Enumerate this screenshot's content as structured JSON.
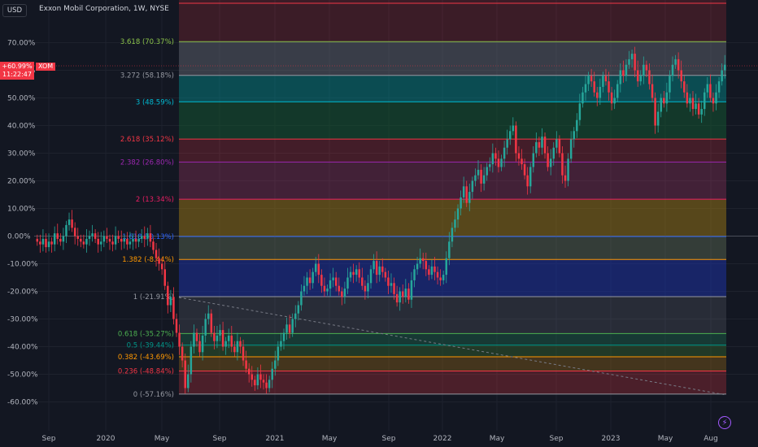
{
  "header": {
    "currency": "USD",
    "title": "Exxon Mobil Corporation, 1W, NYSE"
  },
  "badges": {
    "price_change": "+60.99%",
    "countdown": "11:22:47",
    "ticker": "XOM"
  },
  "colors": {
    "background": "#131722",
    "up": "#26a69a",
    "down": "#f23645",
    "grid": "#1e222d"
  },
  "icons": {
    "alert": "lightning-icon"
  },
  "chart_data": {
    "type": "candlestick",
    "title": "Exxon Mobil Corporation, 1W, NYSE",
    "y_axis": {
      "unit": "%",
      "range": [
        -63,
        84
      ],
      "ticks": [
        "70.00%",
        "60.00%",
        "50.00%",
        "40.00%",
        "30.00%",
        "20.00%",
        "10.00%",
        "0.00%",
        "-10.00%",
        "-20.00%",
        "-30.00%",
        "-40.00%",
        "-50.00%",
        "-60.00%"
      ]
    },
    "x_axis": {
      "ticks": [
        "Sep",
        "2020",
        "May",
        "Sep",
        "2021",
        "May",
        "Sep",
        "2022",
        "May",
        "Sep",
        "2023",
        "May",
        "Aug"
      ]
    },
    "fib_levels": [
      {
        "label": "3.618 (70.37%)",
        "value": 70.37,
        "color": "#8bc34a"
      },
      {
        "label": "3.272 (58.18%)",
        "value": 58.18,
        "color": "#9598a1"
      },
      {
        "label": "3 (48.59%)",
        "value": 48.59,
        "color": "#00bcd4"
      },
      {
        "label": "2.618 (35.12%)",
        "value": 35.12,
        "color": "#f23645"
      },
      {
        "label": "2.382 (26.80%)",
        "value": 26.8,
        "color": "#9c27b0"
      },
      {
        "label": "2 (13.34%)",
        "value": 13.34,
        "color": "#e91e63"
      },
      {
        "label": "1.618 (-0.13%)",
        "value": -0.13,
        "color": "#2962ff"
      },
      {
        "label": "1.382 (-8.44%)",
        "value": -8.44,
        "color": "#ff9800"
      },
      {
        "label": "1 (-21.91%)",
        "value": -21.91,
        "color": "#9598a1"
      },
      {
        "label": "0.618 (-35.27%)",
        "value": -35.27,
        "color": "#4caf50"
      },
      {
        "label": "0.5 (-39.44%)",
        "value": -39.44,
        "color": "#009688"
      },
      {
        "label": "0.382 (-43.69%)",
        "value": -43.69,
        "color": "#ff9800"
      },
      {
        "label": "0.236 (-48.84%)",
        "value": -48.84,
        "color": "#f23645"
      },
      {
        "label": "0 (-57.16%)",
        "value": -57.16,
        "color": "#9598a1"
      }
    ],
    "closes": [
      -2,
      -3,
      -1,
      -4,
      -2,
      -3,
      1,
      -1,
      -2,
      0,
      4,
      6,
      3,
      0,
      -1,
      -2,
      -3,
      -1,
      0,
      1,
      -1,
      -3,
      -2,
      0,
      -1,
      -2,
      -3,
      0,
      -1,
      -2,
      -1,
      -3,
      -2,
      -1,
      -2,
      -1,
      0,
      -1,
      1,
      -2,
      -5,
      -8,
      -10,
      -12,
      -18,
      -25,
      -22,
      -30,
      -35,
      -40,
      -45,
      -55,
      -50,
      -40,
      -35,
      -38,
      -42,
      -36,
      -30,
      -28,
      -35,
      -38,
      -36,
      -34,
      -40,
      -38,
      -36,
      -40,
      -42,
      -38,
      -40,
      -45,
      -48,
      -50,
      -52,
      -54,
      -50,
      -52,
      -53,
      -55,
      -52,
      -48,
      -45,
      -40,
      -38,
      -35,
      -32,
      -35,
      -30,
      -28,
      -25,
      -20,
      -18,
      -15,
      -17,
      -13,
      -10,
      -14,
      -18,
      -20,
      -19,
      -16,
      -15,
      -18,
      -20,
      -22,
      -19,
      -15,
      -13,
      -14,
      -12,
      -15,
      -18,
      -20,
      -17,
      -12,
      -9,
      -14,
      -11,
      -13,
      -15,
      -18,
      -17,
      -21,
      -24,
      -20,
      -22,
      -19,
      -23,
      -16,
      -12,
      -10,
      -8,
      -9,
      -12,
      -14,
      -11,
      -13,
      -15,
      -16,
      -14,
      -8,
      -2,
      3,
      6,
      10,
      14,
      18,
      12,
      16,
      20,
      22,
      24,
      19,
      22,
      25,
      26,
      30,
      28,
      25,
      28,
      32,
      35,
      38,
      40,
      30,
      28,
      26,
      22,
      18,
      25,
      30,
      34,
      32,
      36,
      30,
      25,
      28,
      32,
      35,
      30,
      22,
      20,
      28,
      35,
      38,
      42,
      48,
      52,
      55,
      58,
      56,
      52,
      50,
      54,
      58,
      56,
      52,
      48,
      50,
      55,
      60,
      58,
      62,
      64,
      66,
      60,
      56,
      58,
      62,
      60,
      55,
      50,
      40,
      45,
      50,
      48,
      52,
      58,
      62,
      64,
      60,
      56,
      52,
      48,
      50,
      46,
      48,
      44,
      46,
      52,
      55,
      50,
      48,
      52,
      56,
      60,
      62
    ]
  }
}
